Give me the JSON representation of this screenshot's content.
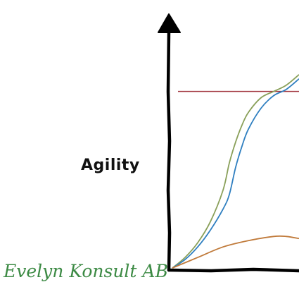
{
  "chart_data": {
    "type": "line",
    "title": "",
    "xlabel": "",
    "ylabel": "Agility",
    "grid": false,
    "legend": "none",
    "xlim": [
      0,
      100
    ],
    "ylim": [
      0,
      100
    ],
    "reference_line": {
      "y": 84,
      "color": "#a0303a"
    },
    "series": [
      {
        "color": "#8aa05a",
        "x": [
          0,
          10,
          20,
          30,
          40,
          45,
          50,
          55,
          60,
          70,
          80,
          90,
          100
        ],
        "y": [
          0,
          5,
          12,
          22,
          37,
          50,
          60,
          68,
          74,
          81,
          84,
          87,
          92
        ]
      },
      {
        "color": "#2f7fc0",
        "x": [
          0,
          10,
          20,
          30,
          40,
          45,
          50,
          55,
          60,
          70,
          80,
          90,
          100
        ],
        "y": [
          0,
          4,
          10,
          18,
          28,
          35,
          48,
          58,
          66,
          76,
          82,
          85,
          90
        ]
      },
      {
        "color": "#c07a3a",
        "x": [
          0,
          20,
          40,
          60,
          80,
          90,
          100
        ],
        "y": [
          0,
          5,
          10,
          13,
          15,
          15,
          14
        ]
      }
    ]
  },
  "labels": {
    "ylabel": "Agility",
    "logo": "Evelyn Konsult AB"
  }
}
